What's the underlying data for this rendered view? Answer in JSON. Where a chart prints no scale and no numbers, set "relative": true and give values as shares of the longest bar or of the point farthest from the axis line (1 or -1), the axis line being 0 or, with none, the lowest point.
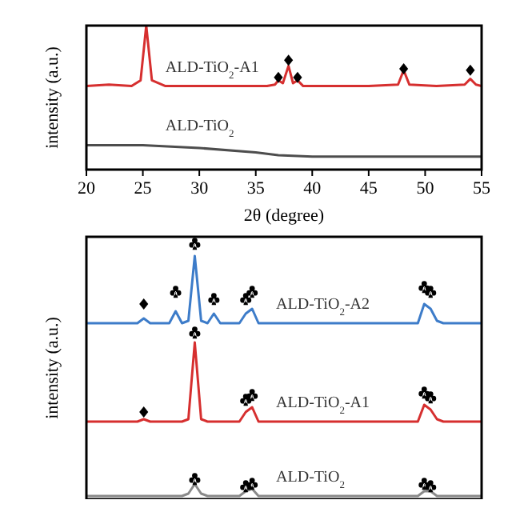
{
  "chart_data": [
    {
      "type": "line",
      "xlabel": "2θ (degree)",
      "ylabel": "intensity (a.u.)",
      "relative": true,
      "xlim": [
        20,
        55
      ],
      "xticks": [
        20,
        25,
        30,
        35,
        40,
        45,
        50,
        55
      ],
      "series": [
        {
          "name": "ALD-TiO$_{2}$-A1",
          "color": "#d62f2f",
          "x": [
            20,
            22,
            24,
            24.8,
            25.3,
            25.8,
            27,
            30,
            33,
            36,
            36.7,
            37.0,
            37.4,
            37.9,
            38.3,
            38.7,
            39.2,
            42,
            45,
            47.6,
            48.1,
            48.6,
            51,
            53.5,
            54.0,
            54.5,
            55
          ],
          "values": [
            0.58,
            0.59,
            0.58,
            0.62,
            1.0,
            0.62,
            0.58,
            0.58,
            0.58,
            0.58,
            0.59,
            0.62,
            0.6,
            0.72,
            0.6,
            0.62,
            0.58,
            0.58,
            0.58,
            0.59,
            0.69,
            0.59,
            0.58,
            0.59,
            0.63,
            0.59,
            0.58
          ]
        },
        {
          "name": "ALD-TiO$_{2}$",
          "color": "#4d4d4d",
          "x": [
            20,
            25,
            30,
            35,
            37,
            40,
            45,
            50,
            55
          ],
          "values": [
            0.17,
            0.17,
            0.15,
            0.12,
            0.1,
            0.09,
            0.09,
            0.09,
            0.09
          ]
        },
        {
          "type": "scatter",
          "marker": "diamond",
          "color": "#000000",
          "x": [
            37.0,
            37.9,
            38.7,
            48.1,
            54.0
          ],
          "values": [
            0.64,
            0.76,
            0.64,
            0.7,
            0.69
          ]
        }
      ]
    },
    {
      "type": "line",
      "ylabel": "intensity (a.u.)",
      "relative": true,
      "categories": [
        null,
        null,
        null,
        null,
        null,
        null,
        null,
        null,
        null,
        null,
        null,
        null,
        null,
        null,
        null,
        null,
        null,
        null,
        null,
        null,
        null,
        null,
        null,
        null,
        null,
        null,
        null,
        null,
        null,
        null,
        null,
        null,
        null,
        null,
        null,
        null,
        null,
        null,
        null,
        null,
        null,
        null,
        null,
        null,
        null,
        null,
        null,
        null,
        null,
        null,
        null,
        null,
        null,
        null,
        null,
        null,
        null,
        null,
        null,
        null,
        null,
        null,
        null
      ],
      "series": [
        {
          "name": "ALD-TiO$_{2}$-A2",
          "color": "#3d7cc9",
          "values": [
            0.72,
            0.72,
            0.72,
            0.72,
            0.72,
            0.72,
            0.72,
            0.72,
            0.72,
            0.74,
            0.72,
            0.72,
            0.72,
            0.72,
            0.77,
            0.72,
            0.73,
            1.0,
            0.73,
            0.72,
            0.76,
            0.72,
            0.72,
            0.72,
            0.72,
            0.76,
            0.78,
            0.72,
            0.72,
            0.72,
            0.72,
            0.72,
            0.72,
            0.72,
            0.72,
            0.72,
            0.72,
            0.72,
            0.72,
            0.72,
            0.72,
            0.72,
            0.72,
            0.72,
            0.72,
            0.72,
            0.72,
            0.72,
            0.72,
            0.72,
            0.72,
            0.72,
            0.72,
            0.8,
            0.78,
            0.73,
            0.72,
            0.72,
            0.72,
            0.72,
            0.72,
            0.72,
            0.72
          ]
        },
        {
          "name": "ALD-TiO$_{2}$-A1",
          "color": "#d62f2f",
          "values": [
            0.31,
            0.31,
            0.31,
            0.31,
            0.31,
            0.31,
            0.31,
            0.31,
            0.31,
            0.32,
            0.31,
            0.31,
            0.31,
            0.31,
            0.31,
            0.31,
            0.32,
            0.64,
            0.32,
            0.31,
            0.31,
            0.31,
            0.31,
            0.31,
            0.31,
            0.35,
            0.37,
            0.31,
            0.31,
            0.31,
            0.31,
            0.31,
            0.31,
            0.31,
            0.31,
            0.31,
            0.31,
            0.31,
            0.31,
            0.31,
            0.31,
            0.31,
            0.31,
            0.31,
            0.31,
            0.31,
            0.31,
            0.31,
            0.31,
            0.31,
            0.31,
            0.31,
            0.31,
            0.38,
            0.36,
            0.32,
            0.31,
            0.31,
            0.31,
            0.31,
            0.31,
            0.31,
            0.31
          ]
        },
        {
          "name": "ALD-TiO$_{2}$",
          "color": "#8a8a8a",
          "values": [
            0,
            0,
            0,
            0,
            0,
            0,
            0,
            0,
            0,
            0,
            0,
            0,
            0,
            0,
            0,
            0,
            0.01,
            0.05,
            0.01,
            0,
            0,
            0,
            0,
            0,
            0,
            0.02,
            0.03,
            0,
            0,
            0,
            0,
            0,
            0,
            0,
            0,
            0,
            0,
            0,
            0,
            0,
            0,
            0,
            0,
            0,
            0,
            0,
            0,
            0,
            0,
            0,
            0,
            0,
            0,
            0.02,
            0.02,
            0,
            0,
            0,
            0,
            0,
            0,
            0,
            0
          ]
        }
      ]
    }
  ]
}
